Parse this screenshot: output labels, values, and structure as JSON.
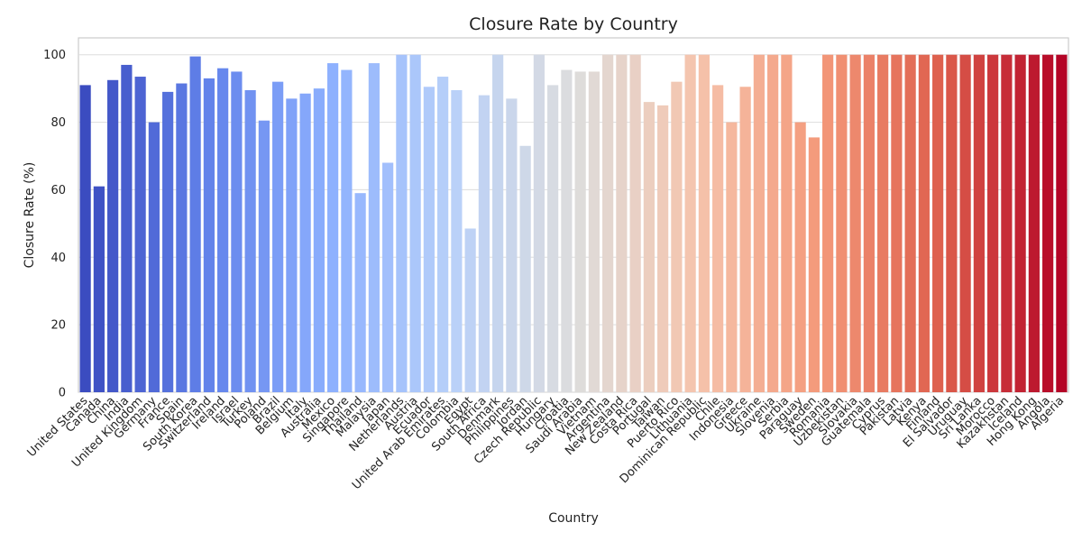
{
  "chart_data": {
    "type": "bar",
    "title": "Closure Rate by Country",
    "xlabel": "Country",
    "ylabel": "Closure Rate (%)",
    "ylim": [
      0,
      105
    ],
    "yticks": [
      0,
      20,
      40,
      60,
      80,
      100
    ],
    "grid": "horizontal",
    "colormap": "coolwarm",
    "categories": [
      "United States",
      "Canada",
      "China",
      "India",
      "United Kingdom",
      "Germany",
      "France",
      "Spain",
      "South Korea",
      "Switzerland",
      "Ireland",
      "Israel",
      "Turkey",
      "Poland",
      "Brazil",
      "Belgium",
      "Italy",
      "Australia",
      "Mexico",
      "Singapore",
      "Thailand",
      "Malaysia",
      "Japan",
      "Netherlands",
      "Austria",
      "Ecuador",
      "United Arab Emirates",
      "Colombia",
      "Egypt",
      "South Africa",
      "Denmark",
      "Philippines",
      "Jordan",
      "Czech Republic",
      "Hungary",
      "Croatia",
      "Saudi Arabia",
      "Vietnam",
      "Argentina",
      "New Zealand",
      "Costa Rica",
      "Portugal",
      "Taiwan",
      "Puerto Rico",
      "Lithuania",
      "Dominican Republic",
      "Chile",
      "Indonesia",
      "Greece",
      "Ukraine",
      "Slovenia",
      "Serbia",
      "Paraguay",
      "Sweden",
      "Romania",
      "Uzbekistan",
      "Slovakia",
      "Guatemala",
      "Cyprus",
      "Pakistan",
      "Latvia",
      "Kenya",
      "Finland",
      "El Salvador",
      "Uruguay",
      "Sri Lanka",
      "Morocco",
      "Kazakhstan",
      "Iceland",
      "Hong Kong",
      "Angola",
      "Algeria"
    ],
    "values": [
      91,
      61,
      92.5,
      97,
      93.5,
      80,
      89,
      91.5,
      99.5,
      93,
      96,
      95,
      89.5,
      80.5,
      92,
      87,
      88.5,
      90,
      97.5,
      95.5,
      59,
      97.5,
      68,
      100,
      100,
      90.5,
      93.5,
      89.5,
      48.5,
      88,
      100,
      87,
      73,
      100,
      91,
      95.5,
      95,
      95,
      100,
      100,
      100,
      86,
      85,
      92,
      100,
      100,
      91,
      80,
      90.5,
      100,
      100,
      100,
      80,
      75.5,
      100,
      100,
      100,
      100,
      100,
      100,
      100,
      100,
      100,
      100,
      100,
      100,
      100,
      100,
      100,
      100,
      100,
      100
    ]
  }
}
